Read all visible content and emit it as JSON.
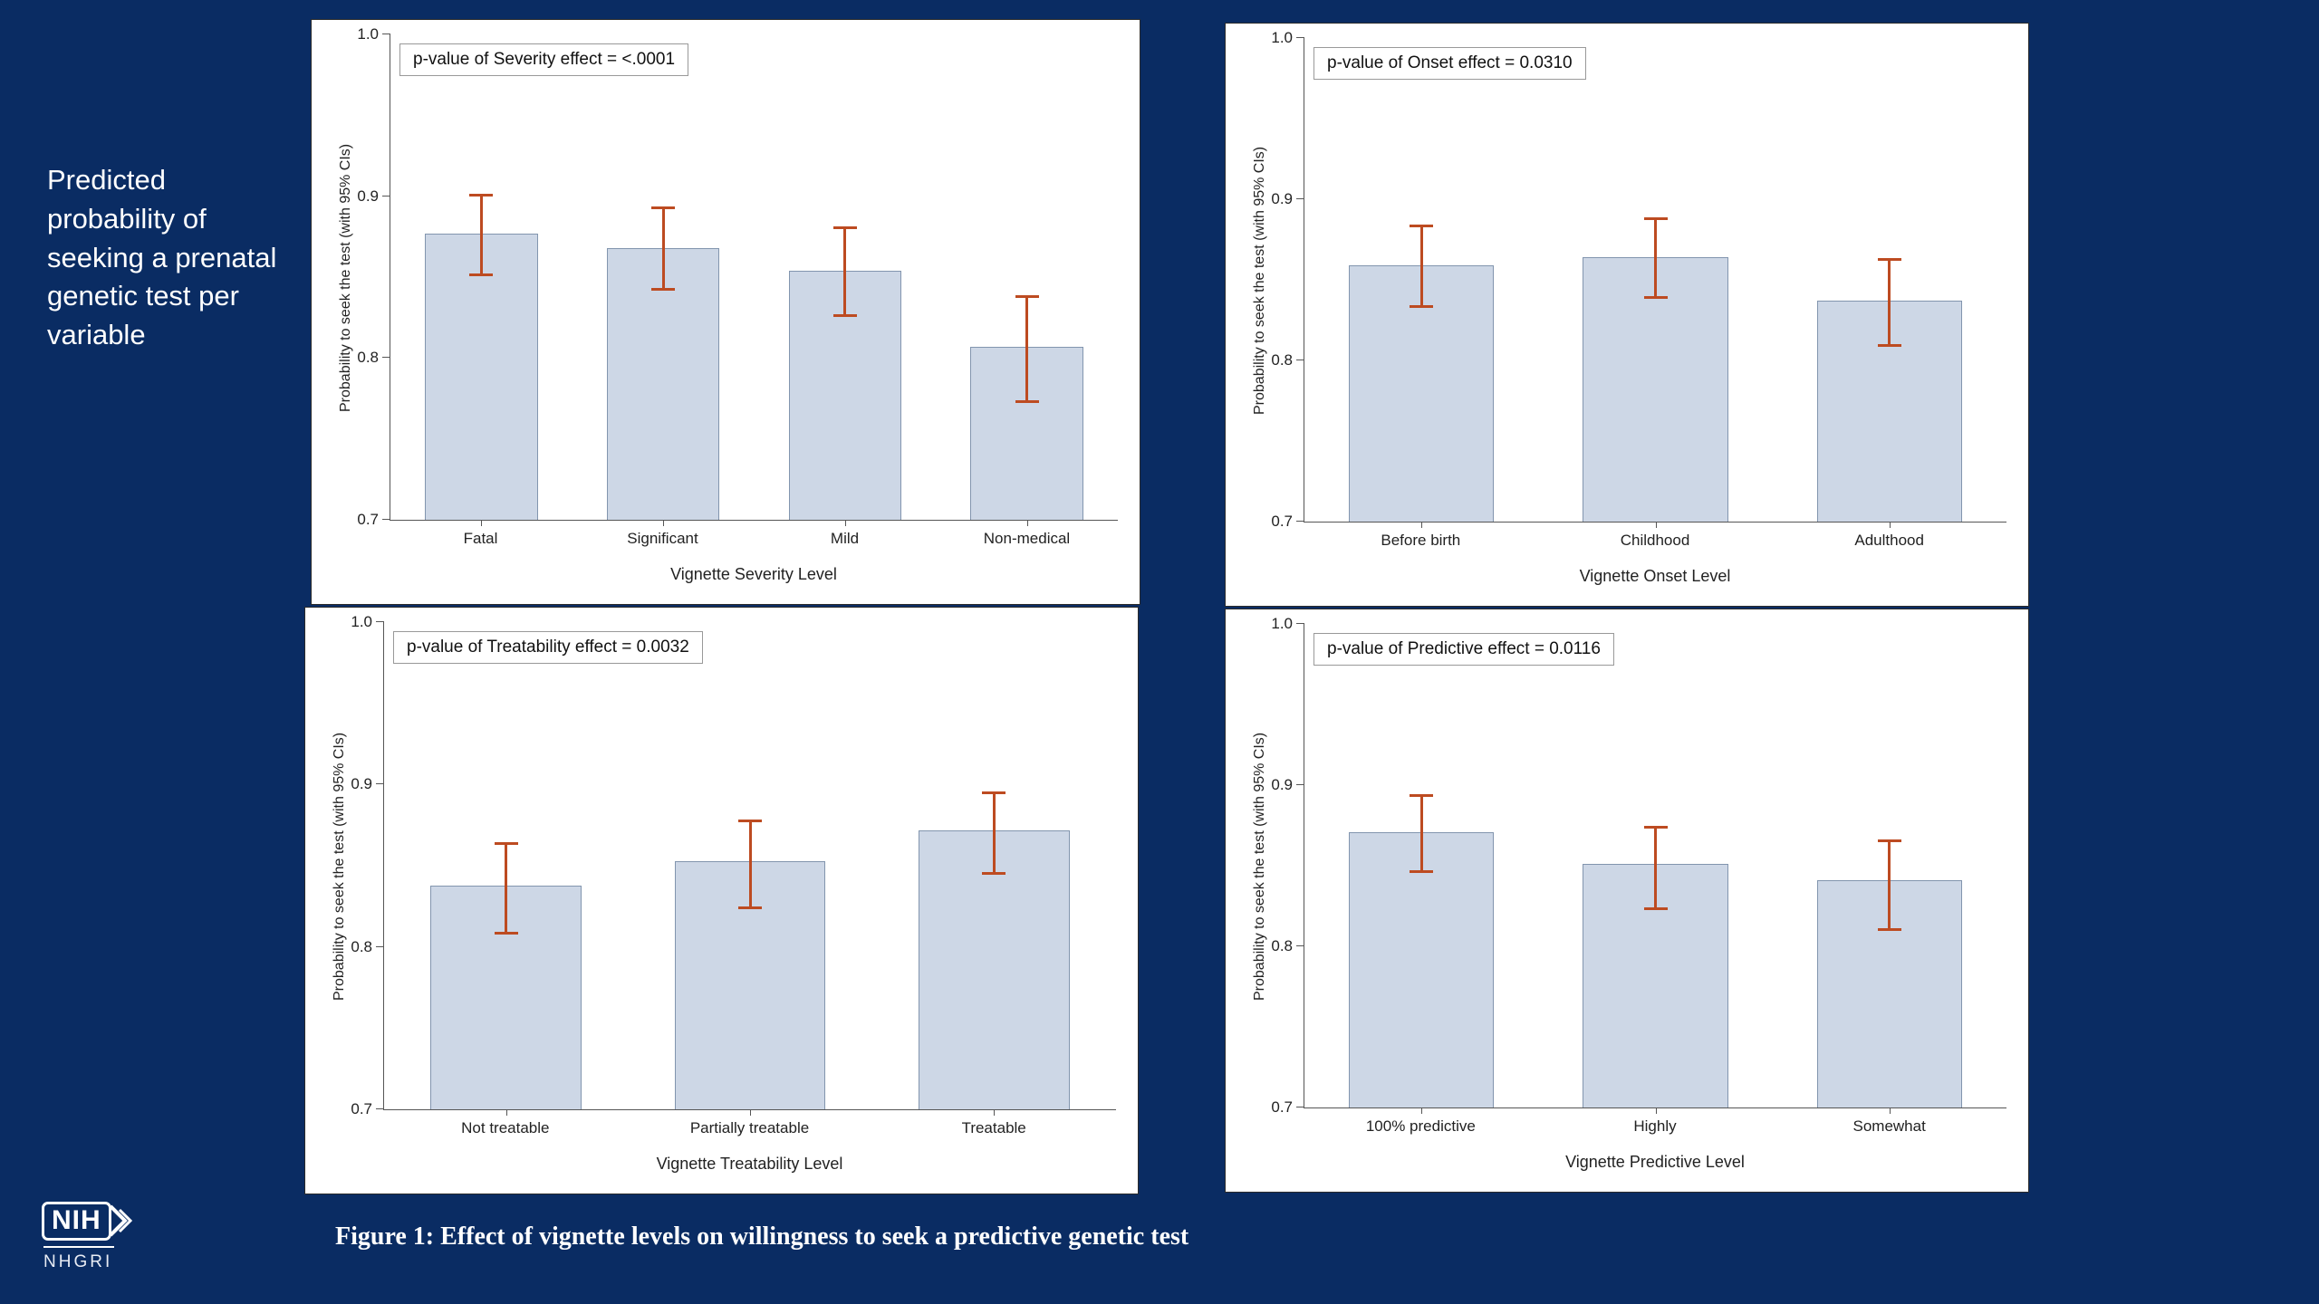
{
  "slide": {
    "title": "Predicted probability of seeking a prenatal genetic test per variable",
    "caption": "Figure 1: Effect of vignette levels on willingness to seek a predictive genetic test",
    "logo_nih": "NIH",
    "logo_nhgri": "NHGRI"
  },
  "colors": {
    "background": "#0a2c63",
    "bar_fill": "#cdd7e6",
    "bar_border": "#8295ae",
    "error_bar": "#bd4b21",
    "title_text": "#ffffff"
  },
  "chart_data": [
    {
      "type": "bar",
      "title": "p-value of Severity effect = <.0001",
      "xlabel": "Vignette Severity Level",
      "ylabel": "Probability to seek the test (with 95% CIs)",
      "ylim": [
        0.7,
        1.0
      ],
      "yticks": [
        0.7,
        0.8,
        0.9,
        1.0
      ],
      "grid": false,
      "legend": "none",
      "categories": [
        "Fatal",
        "Significant",
        "Mild",
        "Non-medical"
      ],
      "values": [
        0.877,
        0.868,
        0.854,
        0.807
      ],
      "ci_low": [
        0.851,
        0.842,
        0.826,
        0.773
      ],
      "ci_high": [
        0.901,
        0.893,
        0.881,
        0.838
      ]
    },
    {
      "type": "bar",
      "title": "p-value of Onset effect = 0.0310",
      "xlabel": "Vignette Onset Level",
      "ylabel": "Probability to seek the test (with 95% CIs)",
      "ylim": [
        0.7,
        1.0
      ],
      "yticks": [
        0.7,
        0.8,
        0.9,
        1.0
      ],
      "grid": false,
      "legend": "none",
      "categories": [
        "Before birth",
        "Childhood",
        "Adulthood"
      ],
      "values": [
        0.859,
        0.864,
        0.837
      ],
      "ci_low": [
        0.833,
        0.839,
        0.809
      ],
      "ci_high": [
        0.884,
        0.888,
        0.863
      ]
    },
    {
      "type": "bar",
      "title": "p-value of Treatability effect = 0.0032",
      "xlabel": "Vignette Treatability Level",
      "ylabel": "Probability to seek the test (with 95% CIs)",
      "ylim": [
        0.7,
        1.0
      ],
      "yticks": [
        0.7,
        0.8,
        0.9,
        1.0
      ],
      "grid": false,
      "legend": "none",
      "categories": [
        "Not treatable",
        "Partially treatable",
        "Treatable"
      ],
      "values": [
        0.838,
        0.853,
        0.872
      ],
      "ci_low": [
        0.808,
        0.824,
        0.845
      ],
      "ci_high": [
        0.864,
        0.878,
        0.895
      ]
    },
    {
      "type": "bar",
      "title": "p-value of Predictive effect = 0.0116",
      "xlabel": "Vignette Predictive Level",
      "ylabel": "Probability to seek the test (with 95% CIs)",
      "ylim": [
        0.7,
        1.0
      ],
      "yticks": [
        0.7,
        0.8,
        0.9,
        1.0
      ],
      "grid": false,
      "legend": "none",
      "categories": [
        "100% predictive",
        "Highly",
        "Somewhat"
      ],
      "values": [
        0.871,
        0.851,
        0.841
      ],
      "ci_low": [
        0.846,
        0.823,
        0.81
      ],
      "ci_high": [
        0.894,
        0.874,
        0.866
      ]
    }
  ]
}
